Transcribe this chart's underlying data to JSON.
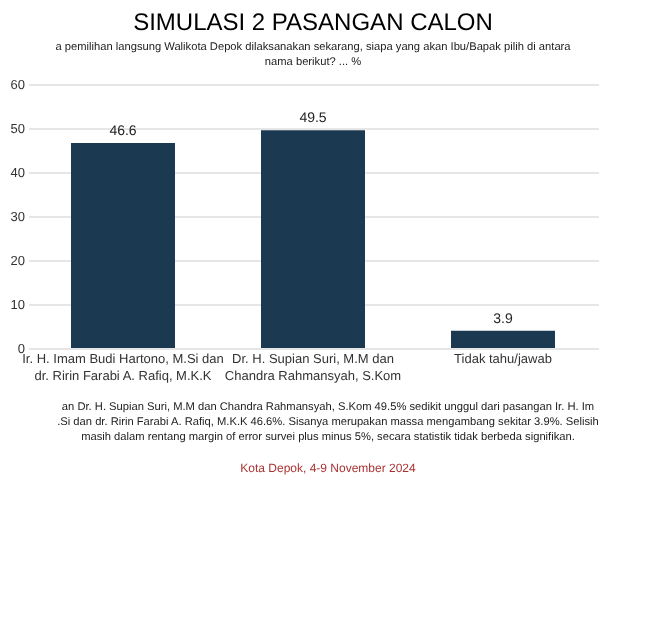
{
  "chart_data": {
    "type": "bar",
    "title": "SIMULASI 2 PASANGAN CALON",
    "subtitle": "a pemilihan langsung Walikota Depok dilaksanakan sekarang, siapa yang akan Ibu/Bapak pilih di antara\nnama berikut? ... %",
    "categories": [
      "Ir. H. Imam Budi Hartono, M.Si dan\ndr. Ririn Farabi A. Rafiq, M.K.K",
      "Dr. H. Supian Suri, M.M dan\nChandra Rahmansyah, S.Kom",
      "Tidak tahu/jawab"
    ],
    "values": [
      46.6,
      49.5,
      3.9
    ],
    "color": "#1b3a52",
    "data_labels": true,
    "ylim": [
      0,
      60
    ],
    "yticks": [
      0,
      10,
      20,
      30,
      40,
      50,
      60
    ],
    "grid": "y",
    "annotations": [
      "an Dr. H. Supian Suri, M.M dan Chandra Rahmansyah, S.Kom 49.5% sedikit unggul dari pasangan Ir. H. Im\n.Si dan dr. Ririn Farabi A. Rafiq, M.K.K 46.6%. Sisanya merupakan massa mengambang sekitar 3.9%. Selisih\nmasih dalam rentang margin of error survei plus minus 5%, secara statistik tidak berbeda signifikan.",
      "Kota Depok, 4-9 November 2024"
    ]
  }
}
